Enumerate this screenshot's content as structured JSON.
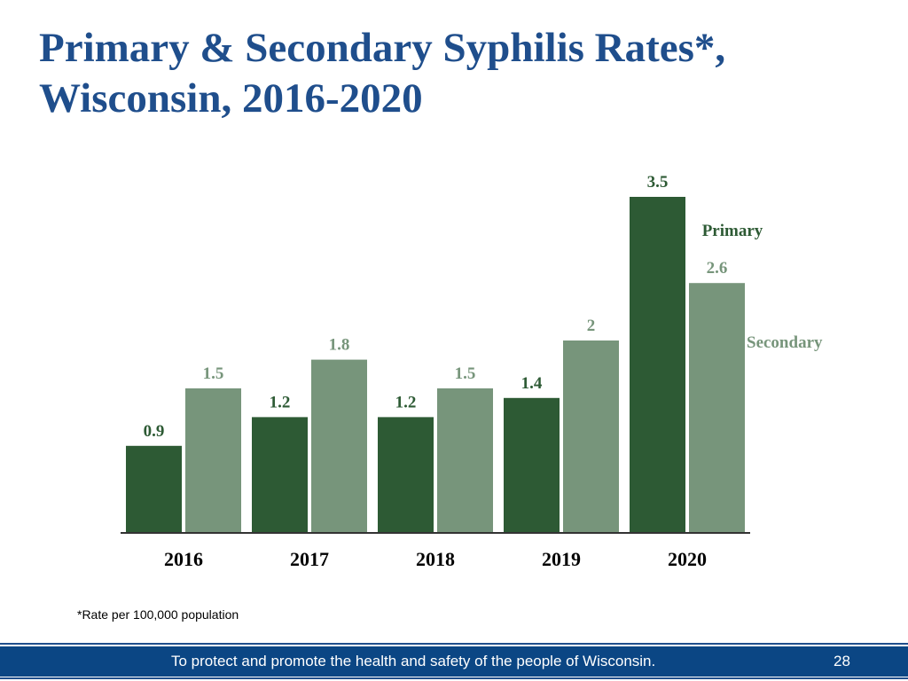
{
  "slide": {
    "title_line1": "Primary & Secondary Syphilis Rates*,",
    "title_line2": "Wisconsin, 2016-2020",
    "footnote": "*Rate per 100,000 population",
    "footer_text": "To protect and promote the health and safety of the people of Wisconsin.",
    "page_number": "28"
  },
  "chart_data": {
    "type": "bar",
    "categories": [
      "2016",
      "2017",
      "2018",
      "2019",
      "2020"
    ],
    "series": [
      {
        "name": "Primary",
        "values": [
          0.9,
          1.2,
          1.2,
          1.4,
          3.5
        ],
        "labels": [
          "0.9",
          "1.2",
          "1.2",
          "1.4",
          "3.5"
        ],
        "color": "#2d5a34"
      },
      {
        "name": "Secondary",
        "values": [
          1.5,
          1.8,
          1.5,
          2.0,
          2.6
        ],
        "labels": [
          "1.5",
          "1.8",
          "1.5",
          "2",
          "2.6"
        ],
        "color": "#77957b"
      }
    ],
    "ylim": [
      0,
      3.5
    ],
    "grid": false,
    "legend": "inline-right"
  }
}
